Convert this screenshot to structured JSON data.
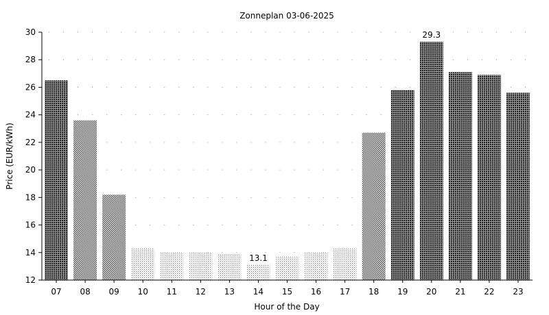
{
  "chart_data": {
    "type": "bar",
    "title": "Zonneplan 03-06-2025",
    "xlabel": "Hour of the Day",
    "ylabel": "Price (EUR/kWh)",
    "categories": [
      "07",
      "08",
      "09",
      "10",
      "11",
      "12",
      "13",
      "14",
      "15",
      "16",
      "17",
      "18",
      "19",
      "20",
      "21",
      "22",
      "23"
    ],
    "values": [
      26.5,
      23.6,
      18.2,
      14.3,
      14.0,
      14.0,
      13.9,
      13.1,
      13.7,
      14.0,
      14.3,
      22.7,
      25.8,
      29.3,
      27.1,
      26.9,
      25.6
    ],
    "ylim": [
      12,
      30
    ],
    "yticks": [
      12,
      14,
      16,
      18,
      20,
      22,
      24,
      26,
      28,
      30
    ],
    "grid": "dotted",
    "annotations": [
      {
        "category": "14",
        "text": "13.1"
      },
      {
        "category": "20",
        "text": "29.3"
      }
    ],
    "bar_colors": {
      "low": "#e6e6e6",
      "mid": "#bdbdbd",
      "high": "#5c5c5c"
    }
  }
}
